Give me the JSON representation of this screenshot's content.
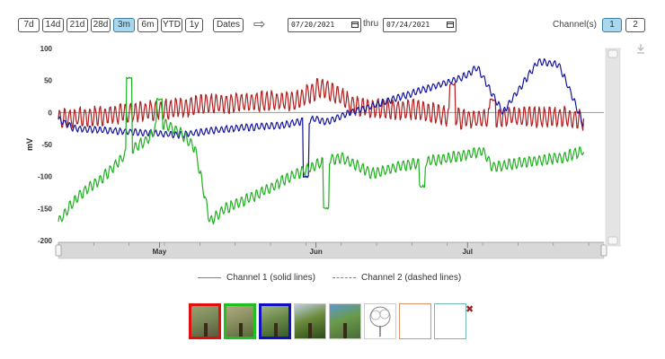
{
  "toolbar": {
    "range_buttons": [
      {
        "label": "7d",
        "active": false
      },
      {
        "label": "14d",
        "active": false
      },
      {
        "label": "21d",
        "active": false
      },
      {
        "label": "28d",
        "active": false
      },
      {
        "label": "3m",
        "active": true
      },
      {
        "label": "6m",
        "active": false
      },
      {
        "label": "YTD",
        "active": false
      },
      {
        "label": "1y",
        "active": false
      }
    ],
    "dates_label": "Dates",
    "start_date": "07/20/2021",
    "thru_label": "thru",
    "end_date": "07/24/2021",
    "channels_label": "Channel(s)",
    "channel_buttons": [
      {
        "label": "1",
        "active": true
      },
      {
        "label": "2",
        "active": false
      }
    ]
  },
  "legend": {
    "channel1": "Channel 1 (solid lines)",
    "channel2": "Channel 2 (dashed lines)"
  },
  "thumbnails": [
    {
      "border": "#e01010",
      "icon": "tree-photo-icon",
      "style": "photo",
      "tones": [
        "#5a5a3a",
        "#7a8a5a",
        "#9aa070"
      ]
    },
    {
      "border": "#20c020",
      "icon": "tree-photo-icon",
      "style": "photo",
      "tones": [
        "#5a6a3a",
        "#8a9060",
        "#b0a880"
      ]
    },
    {
      "border": "#1010c0",
      "icon": "tree-photo-icon",
      "style": "photo",
      "tones": [
        "#3a5a2a",
        "#6a8a4a",
        "#a0b080"
      ]
    },
    {
      "border": "#cccccc",
      "icon": "tree-photo-icon",
      "style": "photo",
      "tones": [
        "#2a4a1a",
        "#6a8a3a",
        "#c0d0e0"
      ]
    },
    {
      "border": "#cccccc",
      "icon": "tree-photo-icon",
      "style": "photo",
      "tones": [
        "#4a6a3a",
        "#6a9a4a",
        "#5a9ad0"
      ]
    },
    {
      "border": "#cccccc",
      "icon": "tree-sketch-icon",
      "style": "sketch",
      "tones": [
        "#ffffff",
        "#888888",
        "#cccccc"
      ]
    },
    {
      "border": "#e0906a",
      "icon": "empty-slot-icon",
      "style": "empty",
      "tones": [
        "#ffffff"
      ]
    },
    {
      "border": "#70b8b8",
      "icon": "empty-slot-icon",
      "style": "empty",
      "tones": [
        "#ffffff"
      ]
    }
  ],
  "chart_data": {
    "type": "line",
    "xlabel": "",
    "ylabel": "mV",
    "ylim": [
      -200,
      100
    ],
    "yticks": [
      100,
      50,
      0,
      -50,
      -100,
      -150,
      -200
    ],
    "x_range": [
      "2021-04-11",
      "2021-07-28"
    ],
    "x_ticks": [
      {
        "date": "2021-05-01",
        "label": "May"
      },
      {
        "date": "2021-06-01",
        "label": "Jun"
      },
      {
        "date": "2021-07-01",
        "label": "Jul"
      }
    ],
    "navigator": true,
    "reference_line": 0,
    "series": [
      {
        "color": "#b02020",
        "daily_amplitude_mV": 15,
        "points": [
          [
            "2021-04-11",
            -10
          ],
          [
            "2021-04-20",
            -5
          ],
          [
            "2021-05-01",
            5
          ],
          [
            "2021-05-10",
            12
          ],
          [
            "2021-05-20",
            18
          ],
          [
            "2021-05-28",
            18
          ],
          [
            "2021-06-02",
            40
          ],
          [
            "2021-06-05",
            30
          ],
          [
            "2021-06-08",
            12
          ],
          [
            "2021-06-14",
            5
          ],
          [
            "2021-06-20",
            5
          ],
          [
            "2021-06-27",
            -5
          ],
          [
            "2021-06-30",
            -10
          ],
          [
            "2021-07-04",
            -10
          ],
          [
            "2021-07-09",
            -5
          ],
          [
            "2021-07-15",
            -8
          ],
          [
            "2021-07-20",
            -6
          ],
          [
            "2021-07-24",
            -12
          ]
        ],
        "spikes": [
          [
            "2021-06-28",
            45
          ],
          [
            "2021-07-06",
            20
          ]
        ]
      },
      {
        "color": "#1515a0",
        "daily_amplitude_mV": 5,
        "points": [
          [
            "2021-04-11",
            -10
          ],
          [
            "2021-04-14",
            -25
          ],
          [
            "2021-04-25",
            -30
          ],
          [
            "2021-05-05",
            -35
          ],
          [
            "2021-05-15",
            -25
          ],
          [
            "2021-05-25",
            -20
          ],
          [
            "2021-06-01",
            -10
          ],
          [
            "2021-06-03",
            -15
          ],
          [
            "2021-06-06",
            -5
          ],
          [
            "2021-06-12",
            10
          ],
          [
            "2021-06-20",
            30
          ],
          [
            "2021-06-30",
            55
          ],
          [
            "2021-07-03",
            70
          ],
          [
            "2021-07-08",
            0
          ],
          [
            "2021-07-15",
            80
          ],
          [
            "2021-07-19",
            75
          ],
          [
            "2021-07-21",
            40
          ],
          [
            "2021-07-24",
            -20
          ]
        ],
        "spikes": [
          [
            "2021-05-30",
            -100
          ]
        ]
      },
      {
        "color": "#20b020",
        "daily_amplitude_mV": 8,
        "points": [
          [
            "2021-04-11",
            -170
          ],
          [
            "2021-04-15",
            -130
          ],
          [
            "2021-04-20",
            -100
          ],
          [
            "2021-04-25",
            -60
          ],
          [
            "2021-04-29",
            -40
          ],
          [
            "2021-05-01",
            -15
          ],
          [
            "2021-05-05",
            -30
          ],
          [
            "2021-05-08",
            -55
          ],
          [
            "2021-05-11",
            -170
          ],
          [
            "2021-05-14",
            -150
          ],
          [
            "2021-05-20",
            -130
          ],
          [
            "2021-05-27",
            -100
          ],
          [
            "2021-06-03",
            -75
          ],
          [
            "2021-06-06",
            -70
          ],
          [
            "2021-06-12",
            -95
          ],
          [
            "2021-06-20",
            -80
          ],
          [
            "2021-06-28",
            -70
          ],
          [
            "2021-07-04",
            -60
          ],
          [
            "2021-07-06",
            -85
          ],
          [
            "2021-07-15",
            -75
          ],
          [
            "2021-07-20",
            -70
          ],
          [
            "2021-07-24",
            -60
          ]
        ],
        "spikes": [
          [
            "2021-04-25",
            55
          ],
          [
            "2021-05-01",
            20
          ],
          [
            "2021-06-03",
            -150
          ],
          [
            "2021-06-22",
            -115
          ]
        ]
      }
    ]
  }
}
